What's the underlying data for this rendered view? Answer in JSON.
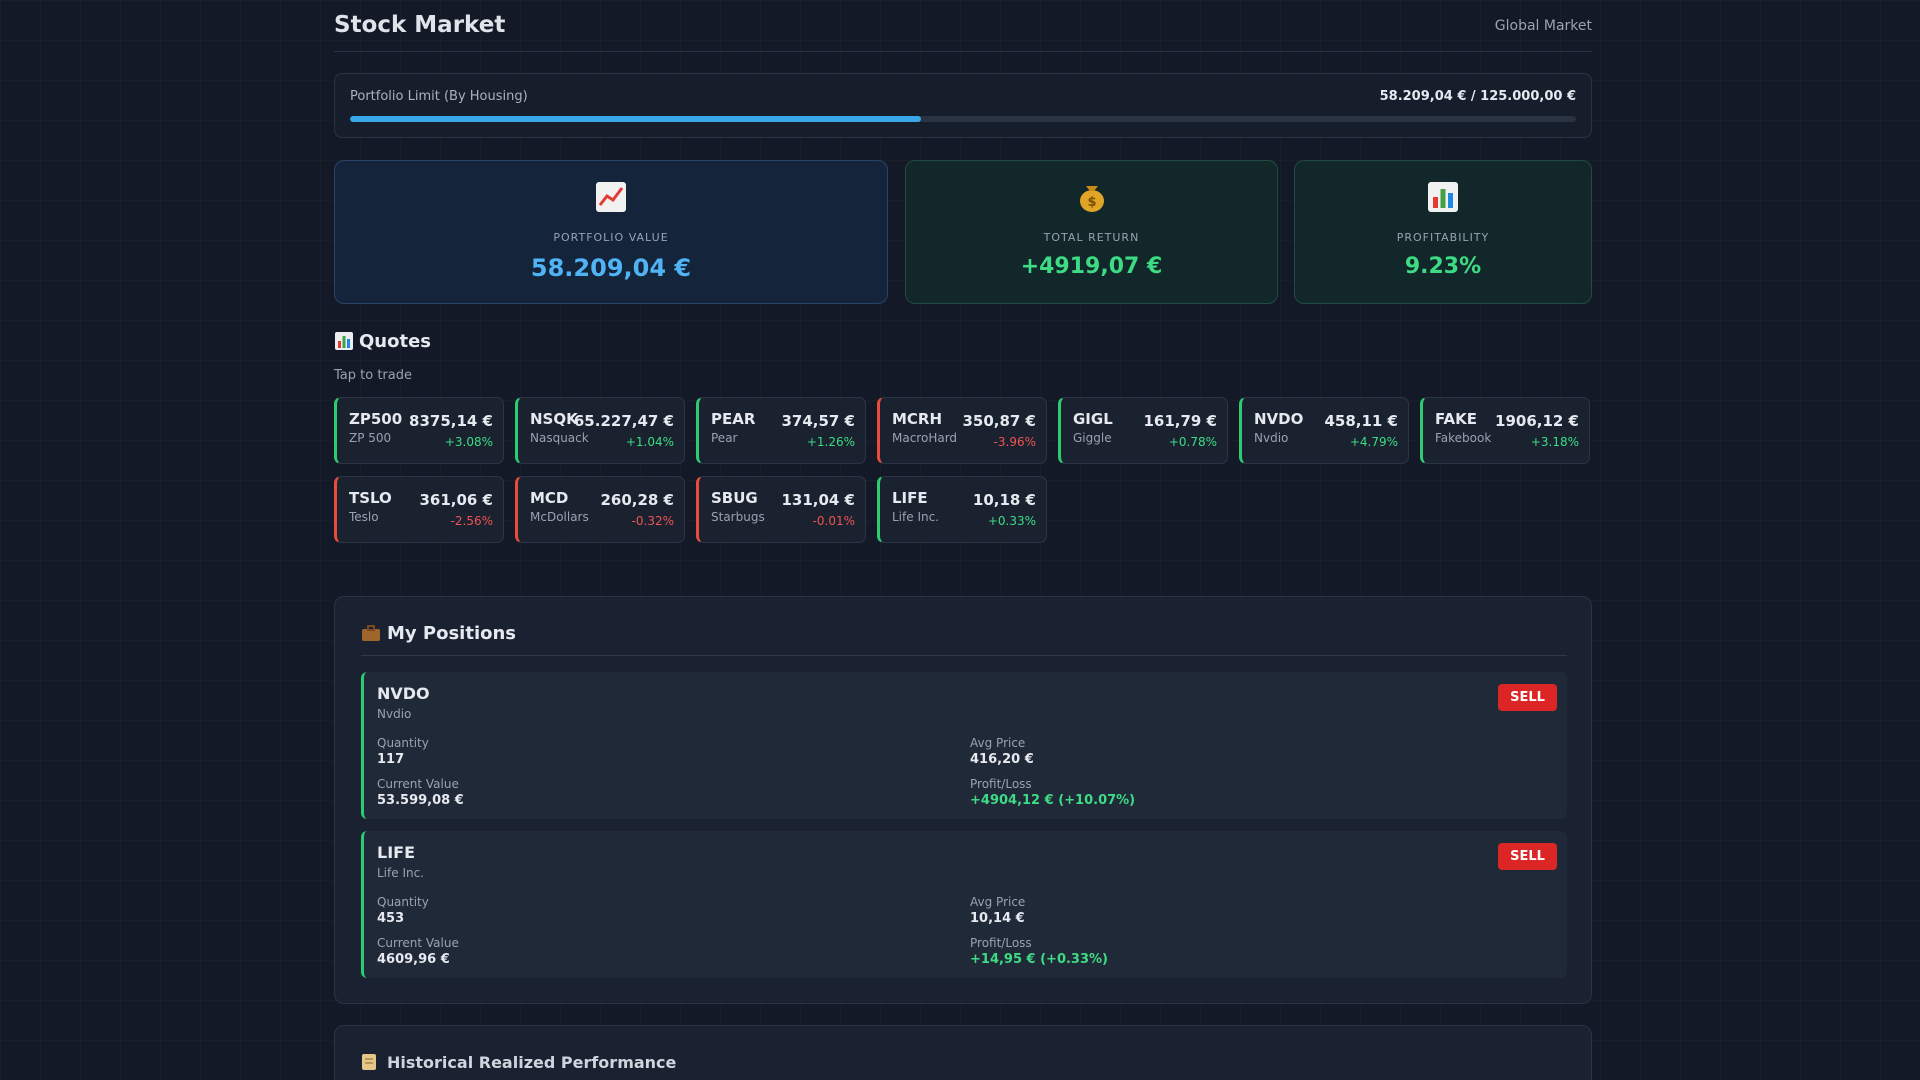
{
  "header": {
    "title": "Stock Market",
    "market": "Global Market"
  },
  "limit": {
    "label": "Portfolio Limit (By Housing)",
    "text": "58.209,04 € / 125.000,00 €",
    "used": 58209.04,
    "max": 125000
  },
  "stats": [
    {
      "label": "PORTFOLIO VALUE",
      "value": "58.209,04 €"
    },
    {
      "label": "TOTAL RETURN",
      "value": "+4919,07 €"
    },
    {
      "label": "PROFITABILITY",
      "value": "9.23%"
    }
  ],
  "quotes": {
    "title": "Quotes",
    "hint": "Tap to trade",
    "items": [
      {
        "symbol": "ZP500",
        "name": "ZP 500",
        "price": "8375,14 €",
        "change": "+3.08%"
      },
      {
        "symbol": "NSQK",
        "name": "Nasquack",
        "price": "65.227,47 €",
        "change": "+1.04%"
      },
      {
        "symbol": "PEAR",
        "name": "Pear",
        "price": "374,57 €",
        "change": "+1.26%"
      },
      {
        "symbol": "MCRH",
        "name": "MacroHard",
        "price": "350,87 €",
        "change": "-3.96%"
      },
      {
        "symbol": "GIGL",
        "name": "Giggle",
        "price": "161,79 €",
        "change": "+0.78%"
      },
      {
        "symbol": "NVDO",
        "name": "Nvdio",
        "price": "458,11 €",
        "change": "+4.79%"
      },
      {
        "symbol": "FAKE",
        "name": "Fakebook",
        "price": "1906,12 €",
        "change": "+3.18%"
      },
      {
        "symbol": "TSLO",
        "name": "Teslo",
        "price": "361,06 €",
        "change": "-2.56%"
      },
      {
        "symbol": "MCD",
        "name": "McDollars",
        "price": "260,28 €",
        "change": "-0.32%"
      },
      {
        "symbol": "SBUG",
        "name": "Starbugs",
        "price": "131,04 €",
        "change": "-0.01%"
      },
      {
        "symbol": "LIFE",
        "name": "Life Inc.",
        "price": "10,18 €",
        "change": "+0.33%"
      }
    ]
  },
  "positions": {
    "title": "My Positions",
    "action": "SELL",
    "fields": [
      "Quantity",
      "Avg Price",
      "Current Value",
      "Profit/Loss"
    ],
    "items": [
      {
        "symbol": "NVDO",
        "name": "Nvdio",
        "quantity": "117",
        "avg_price": "416,20 €",
        "current_value": "53.599,08 €",
        "profit_loss": "+4904,12 € (+10.07%)"
      },
      {
        "symbol": "LIFE",
        "name": "Life Inc.",
        "quantity": "453",
        "avg_price": "10,14 €",
        "current_value": "4609,96 €",
        "profit_loss": "+14,95 € (+0.33%)"
      }
    ]
  },
  "history": {
    "title": "Historical Realized Performance"
  }
}
